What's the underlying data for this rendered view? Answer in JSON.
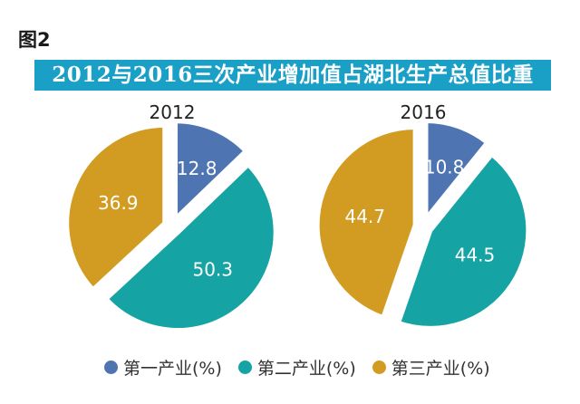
{
  "figure_label": "图2",
  "chart_data": {
    "type": "pie",
    "title": "2012与2016三次产业增加值占湖北生产总值比重",
    "categories": [
      "第一产业(%)",
      "第二产业(%)",
      "第三产业(%)"
    ],
    "colors": [
      "#4e74b2",
      "#16a3a3",
      "#d29c22"
    ],
    "series": [
      {
        "name": "2012",
        "values": [
          12.8,
          50.3,
          36.9
        ]
      },
      {
        "name": "2016",
        "values": [
          10.8,
          44.5,
          44.7
        ]
      }
    ],
    "legend_position": "bottom"
  }
}
